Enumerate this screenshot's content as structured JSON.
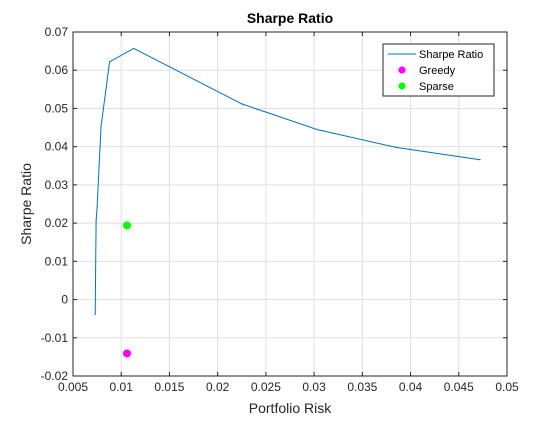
{
  "chart_data": {
    "type": "line",
    "title": "Sharpe Ratio",
    "xlabel": "Portfolio Risk",
    "ylabel": "Sharpe Ratio",
    "xlim": [
      0.005,
      0.05
    ],
    "ylim": [
      -0.02,
      0.07
    ],
    "xticks": [
      0.005,
      0.01,
      0.015,
      0.02,
      0.025,
      0.03,
      0.035,
      0.04,
      0.045,
      0.05
    ],
    "xtick_labels": [
      "0.005",
      "0.01",
      "0.015",
      "0.02",
      "0.025",
      "0.03",
      "0.035",
      "0.04",
      "0.045",
      "0.05"
    ],
    "yticks": [
      -0.02,
      -0.01,
      0,
      0.01,
      0.02,
      0.03,
      0.04,
      0.05,
      0.06,
      0.07
    ],
    "ytick_labels": [
      "-0.02",
      "-0.01",
      "0",
      "0.01",
      "0.02",
      "0.03",
      "0.04",
      "0.05",
      "0.06",
      "0.07"
    ],
    "grid": true,
    "legend_position": "top-right",
    "series": [
      {
        "name": "Sharpe Ratio",
        "kind": "line",
        "color": "#0072bd",
        "x": [
          0.0073,
          0.0074,
          0.0075,
          0.0079,
          0.0088,
          0.0113,
          0.0225,
          0.0303,
          0.0385,
          0.0472
        ],
        "y": [
          -0.0039,
          0.0206,
          0.0241,
          0.0452,
          0.0622,
          0.0657,
          0.0512,
          0.0445,
          0.0398,
          0.0366
        ]
      },
      {
        "name": "Greedy",
        "kind": "marker",
        "color": "#ff00ff",
        "x": [
          0.0106
        ],
        "y": [
          -0.0141
        ]
      },
      {
        "name": "Sparse",
        "kind": "marker",
        "color": "#00ff00",
        "x": [
          0.0106
        ],
        "y": [
          0.0194
        ]
      }
    ]
  }
}
